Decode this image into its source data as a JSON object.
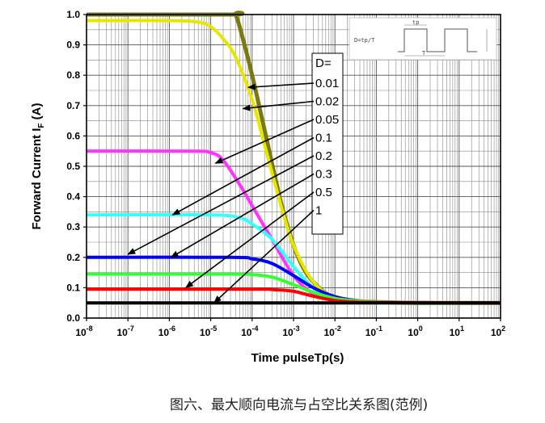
{
  "chart_data": {
    "type": "line",
    "title": "",
    "xlabel": "Time pulseTp(s)",
    "ylabel_main": "Forward Current I",
    "ylabel_sub": "F",
    "ylabel_unit": " (A)",
    "x_scale": "log",
    "xlim": [
      1e-08,
      100
    ],
    "ylim": [
      0,
      1.0
    ],
    "x_tick_exponents": [
      "-8",
      "-7",
      "-6",
      "-5",
      "-4",
      "-3",
      "-2",
      "-1",
      "0",
      "1",
      "2"
    ],
    "x_tick_base": "10",
    "y_ticks": [
      "0.0",
      "0.1",
      "0.2",
      "0.3",
      "0.4",
      "0.5",
      "0.6",
      "0.7",
      "0.8",
      "0.9",
      "1.0"
    ],
    "grid": true,
    "legend_title": "D=",
    "series": [
      {
        "name": "0.01",
        "color": "#7a7a10",
        "width": 5,
        "x": [
          1e-08,
          3e-05,
          4e-05,
          6e-05,
          0.0001,
          0.0002,
          0.0005,
          0.001,
          0.002,
          0.005,
          0.01,
          0.03,
          0.1,
          1,
          100
        ],
        "y": [
          1.0,
          1.0,
          1.0,
          0.92,
          0.8,
          0.62,
          0.38,
          0.24,
          0.15,
          0.09,
          0.07,
          0.057,
          0.053,
          0.05,
          0.05
        ]
      },
      {
        "name": "0.02",
        "color": "#e6e600",
        "width": 4,
        "x": [
          1e-08,
          1e-06,
          5e-06,
          1e-05,
          2e-05,
          4e-05,
          0.0001,
          0.0002,
          0.0005,
          0.001,
          0.003,
          0.01,
          0.1,
          100
        ],
        "y": [
          0.98,
          0.98,
          0.975,
          0.96,
          0.92,
          0.86,
          0.72,
          0.57,
          0.37,
          0.24,
          0.12,
          0.07,
          0.053,
          0.05
        ]
      },
      {
        "name": "0.05",
        "color": "#ff33ff",
        "width": 4,
        "x": [
          1e-08,
          3e-06,
          1e-05,
          2e-05,
          5e-05,
          0.0001,
          0.0003,
          0.001,
          0.003,
          0.01,
          0.1,
          100
        ],
        "y": [
          0.55,
          0.55,
          0.545,
          0.52,
          0.44,
          0.37,
          0.26,
          0.14,
          0.08,
          0.063,
          0.052,
          0.05
        ]
      },
      {
        "name": "0.1",
        "color": "#33ffff",
        "width": 4,
        "x": [
          1e-08,
          1e-05,
          5e-05,
          0.0001,
          0.0003,
          0.001,
          0.003,
          0.01,
          0.1,
          100
        ],
        "y": [
          0.34,
          0.34,
          0.33,
          0.31,
          0.26,
          0.17,
          0.1,
          0.065,
          0.052,
          0.05
        ]
      },
      {
        "name": "0.2",
        "color": "#0000ff",
        "width": 4,
        "x": [
          1e-08,
          3e-05,
          0.0001,
          0.0003,
          0.001,
          0.003,
          0.01,
          0.03,
          0.1,
          100
        ],
        "y": [
          0.2,
          0.2,
          0.195,
          0.18,
          0.14,
          0.1,
          0.07,
          0.058,
          0.052,
          0.05
        ]
      },
      {
        "name": "0.3",
        "color": "#33ff33",
        "width": 4,
        "x": [
          1e-08,
          3e-05,
          0.0001,
          0.0003,
          0.001,
          0.003,
          0.01,
          0.03,
          0.1,
          100
        ],
        "y": [
          0.145,
          0.145,
          0.143,
          0.135,
          0.11,
          0.085,
          0.065,
          0.057,
          0.052,
          0.05
        ]
      },
      {
        "name": "0.5",
        "color": "#ff0000",
        "width": 4,
        "x": [
          1e-08,
          0.0001,
          0.0003,
          0.001,
          0.003,
          0.01,
          0.03,
          0.1,
          100
        ],
        "y": [
          0.095,
          0.095,
          0.094,
          0.088,
          0.072,
          0.058,
          0.053,
          0.051,
          0.05
        ]
      },
      {
        "name": "1",
        "color": "#000000",
        "width": 4,
        "x": [
          1e-08,
          100
        ],
        "y": [
          0.05,
          0.05
        ]
      }
    ],
    "arrows": [
      {
        "label": "0.01",
        "to_x": 8e-05,
        "to_y": 0.76
      },
      {
        "label": "0.02",
        "to_x": 6e-05,
        "to_y": 0.69
      },
      {
        "label": "0.05",
        "to_x": 1.3e-05,
        "to_y": 0.51
      },
      {
        "label": "0.1",
        "to_x": 1.2e-06,
        "to_y": 0.34
      },
      {
        "label": "0.2",
        "to_x": 1e-07,
        "to_y": 0.21
      },
      {
        "label": "0.3",
        "to_x": 1.1e-06,
        "to_y": 0.2
      },
      {
        "label": "0.5",
        "to_x": 2.5e-06,
        "to_y": 0.1
      },
      {
        "label": "1",
        "to_x": 1.2e-05,
        "to_y": 0.05
      }
    ],
    "inset": {
      "formula": "D=tp/T",
      "tp_label": "tp",
      "T_label": "T"
    }
  },
  "caption": "图六、最大顺向电流与占空比关系图(范例)"
}
